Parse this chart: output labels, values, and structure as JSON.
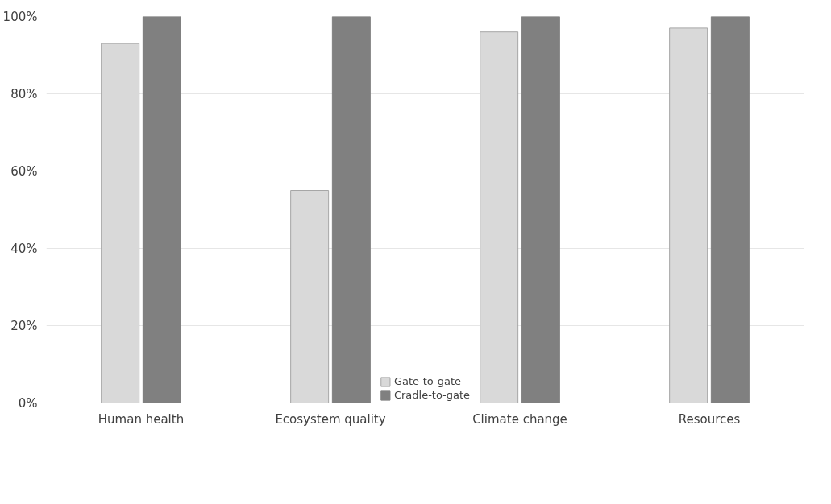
{
  "chart_data": {
    "type": "bar",
    "categories": [
      "Human health",
      "Ecosystem quality",
      "Climate change",
      "Resources"
    ],
    "series": [
      {
        "name": "Gate-to-gate",
        "color": "#d9d9d9",
        "values": [
          93,
          55,
          96,
          97
        ]
      },
      {
        "name": "Cradle-to-gate",
        "color": "#808080",
        "values": [
          100,
          100,
          100,
          100
        ]
      }
    ],
    "ylim": [
      0,
      100
    ],
    "yticks": [
      {
        "value": 0,
        "label": "0%"
      },
      {
        "value": 20,
        "label": "20%"
      },
      {
        "value": 40,
        "label": "40%"
      },
      {
        "value": 60,
        "label": "60%"
      },
      {
        "value": 80,
        "label": "80%"
      },
      {
        "value": 100,
        "label": "100%"
      }
    ],
    "grid": "y",
    "legend": "bottom"
  }
}
